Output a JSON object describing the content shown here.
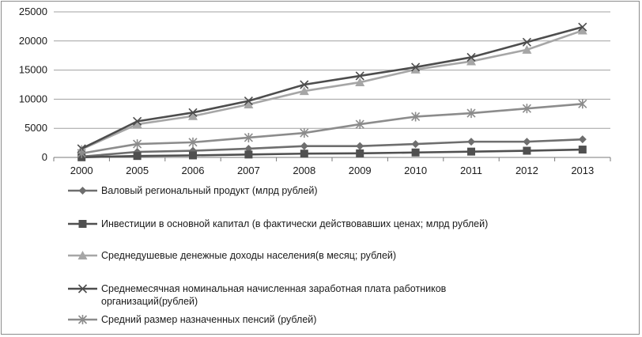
{
  "chart_data": {
    "type": "line",
    "title": "",
    "xlabel": "",
    "ylabel": "",
    "categories": [
      "2000",
      "2005",
      "2006",
      "2007",
      "2008",
      "2009",
      "2010",
      "2011",
      "2012",
      "2013"
    ],
    "ylim": [
      0,
      25000
    ],
    "yticks": [
      0,
      5000,
      10000,
      15000,
      20000,
      25000
    ],
    "grid": true,
    "legend_position": "bottom",
    "series": [
      {
        "name": "Валовый региональный продукт (млрд рублей)",
        "legend_lines": [
          "Валовый региональный продукт (млрд рублей)"
        ],
        "marker": "diamond",
        "color": "#6e6e6e",
        "values": [
          140,
          950,
          1150,
          1500,
          1950,
          1950,
          2300,
          2700,
          2700,
          3100
        ]
      },
      {
        "name": "Инвестиции в основной капитал (в фактически действовавших ценах; млрд рублей)",
        "legend_lines": [
          "Инвестиции в основной капитал (в фактически действовавших ценах; млрд рублей)"
        ],
        "marker": "square",
        "color": "#505050",
        "values": [
          30,
          250,
          350,
          500,
          650,
          700,
          850,
          1000,
          1150,
          1350
        ]
      },
      {
        "name": "Среднедушевые денежные доходы населения(в месяц; рублей)",
        "legend_lines": [
          "Среднедушевые денежные доходы населения(в месяц; рублей)"
        ],
        "marker": "triangle",
        "color": "#a6a6a6",
        "values": [
          1400,
          5700,
          7100,
          9100,
          11400,
          12900,
          15100,
          16500,
          18500,
          21800
        ]
      },
      {
        "name": "Среднемесячная номинальная начисленная заработная плата работников организаций(рублей)",
        "legend_lines": [
          "Среднемесячная номинальная начисленная заработная плата работников",
          "организаций(рублей)"
        ],
        "marker": "x",
        "color": "#4d4d4d",
        "values": [
          1500,
          6200,
          7700,
          9700,
          12500,
          14000,
          15500,
          17200,
          19800,
          22400
        ]
      },
      {
        "name": "Средний размер назначенных пенсий (рублей)",
        "legend_lines": [
          "Средний размер назначенных пенсий (рублей)"
        ],
        "marker": "star",
        "color": "#8c8c8c",
        "values": [
          700,
          2300,
          2600,
          3400,
          4200,
          5700,
          7000,
          7600,
          8400,
          9200
        ]
      }
    ]
  }
}
